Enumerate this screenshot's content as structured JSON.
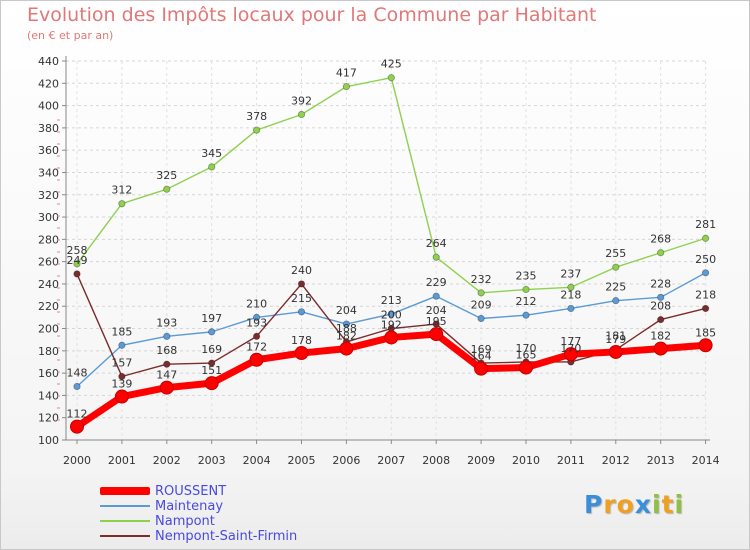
{
  "header": {
    "title": "Evolution des Impôts locaux pour la Commune par Habitant",
    "subtitle": "(en € et par an)"
  },
  "chart_data": {
    "type": "line",
    "title": "Evolution des Impôts locaux pour la Commune par Habitant",
    "subtitle": "(en € et par an)",
    "x": [
      2000,
      2001,
      2002,
      2003,
      2004,
      2005,
      2006,
      2007,
      2008,
      2009,
      2010,
      2011,
      2012,
      2013,
      2014
    ],
    "ylim": [
      100,
      440
    ],
    "yticks": [
      100,
      120,
      140,
      160,
      180,
      200,
      220,
      240,
      260,
      280,
      300,
      320,
      340,
      360,
      380,
      400,
      420,
      440
    ],
    "grid": "horizontal dashed",
    "legend_position": "bottom-left",
    "series": [
      {
        "name": "ROUSSENT",
        "color": "#ff0000",
        "values": [
          112,
          139,
          147,
          151,
          172,
          178,
          182,
          192,
          195,
          164,
          165,
          177,
          179,
          182,
          185
        ],
        "labels": [
          "112",
          "139",
          "147",
          "151",
          "172",
          "178",
          "182",
          "192",
          "195",
          "164",
          "165",
          "177",
          "179",
          "182",
          "185"
        ]
      },
      {
        "name": "Maintenay",
        "color": "#5b9bd5",
        "values": [
          148,
          185,
          193,
          197,
          210,
          215,
          204,
          213,
          229,
          209,
          212,
          218,
          225,
          228,
          250
        ],
        "labels": [
          "148",
          "185",
          "193",
          "197",
          "210",
          "215",
          "204",
          "213",
          "229",
          "209",
          "212",
          "218",
          "225",
          "228",
          "250"
        ]
      },
      {
        "name": "Nampont",
        "color": "#8fd14f",
        "values": [
          258,
          312,
          325,
          345,
          378,
          392,
          417,
          425,
          264,
          232,
          235,
          237,
          255,
          268,
          281
        ],
        "labels": [
          "258",
          "312",
          "325",
          "345",
          "378",
          "392",
          "417",
          "425",
          "264",
          "232",
          "235",
          "237",
          "255",
          "268",
          "281"
        ]
      },
      {
        "name": "Nempont-Saint-Firmin",
        "color": "#7b2c2c",
        "values": [
          249,
          157,
          168,
          169,
          193,
          240,
          188,
          200,
          204,
          169,
          170,
          170,
          181,
          208,
          218
        ],
        "labels": [
          "249",
          "157",
          "168",
          "169",
          "193",
          "240",
          "188",
          "200",
          "204",
          "169",
          "170",
          "170",
          "181",
          "208",
          "218"
        ]
      }
    ]
  },
  "legend": {
    "items": [
      {
        "label": "ROUSSENT",
        "color": "#ff0000"
      },
      {
        "label": "Maintenay",
        "color": "#5b9bd5"
      },
      {
        "label": "Nampont",
        "color": "#8fd14f"
      },
      {
        "label": "Nempont-Saint-Firmin",
        "color": "#7b2c2c"
      }
    ]
  },
  "logo": {
    "letters": [
      "P",
      "r",
      "o",
      "x",
      "i",
      "t",
      "i"
    ],
    "colors": [
      "#3a8fd8",
      "#f0a020",
      "#f0a020",
      "#3a8fd8",
      "#8fc040",
      "#f0a020",
      "#8fc040"
    ]
  }
}
